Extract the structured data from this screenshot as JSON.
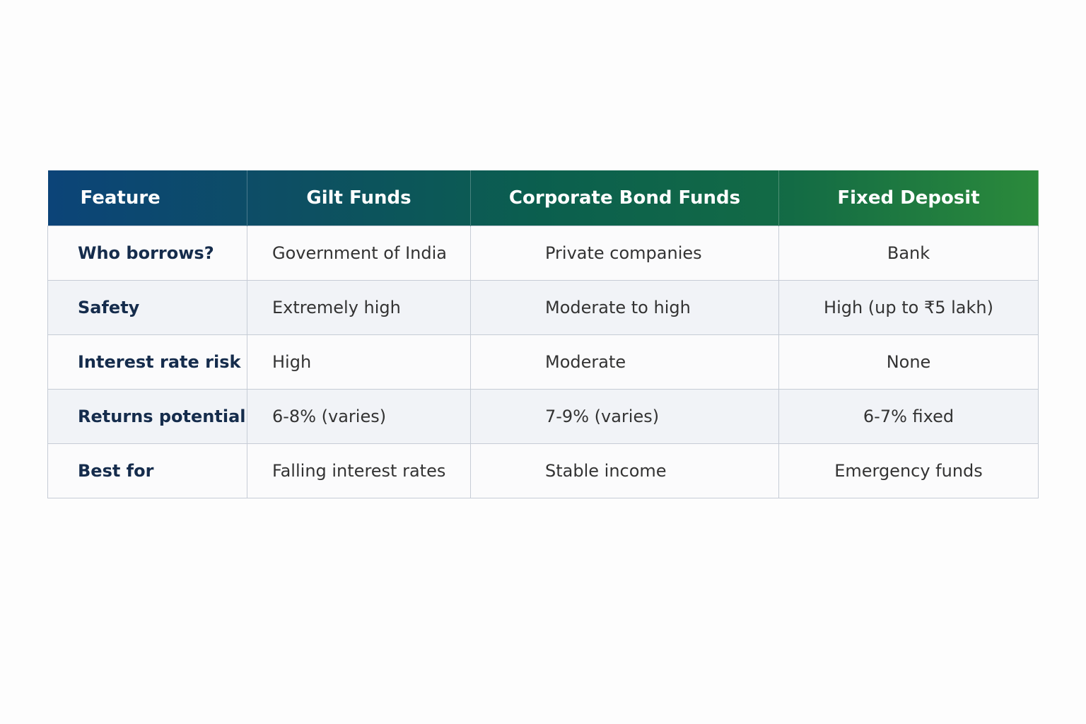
{
  "table": {
    "header": [
      "Feature",
      "Gilt Funds",
      "Corporate Bond Funds",
      "Fixed Deposit"
    ],
    "rows": [
      [
        "Who borrows?",
        "Government of India",
        "Private companies",
        "Bank"
      ],
      [
        "Safety",
        "Extremely high",
        "Moderate to high",
        "High (up to ₹5 lakh)"
      ],
      [
        "Interest rate risk",
        "High",
        "Moderate",
        "None"
      ],
      [
        "Returns potential",
        "6-8% (varies)",
        "7-9% (varies)",
        "6-7% fixed"
      ],
      [
        "Best for",
        "Falling interest rates",
        "Stable income",
        "Emergency funds"
      ]
    ]
  }
}
